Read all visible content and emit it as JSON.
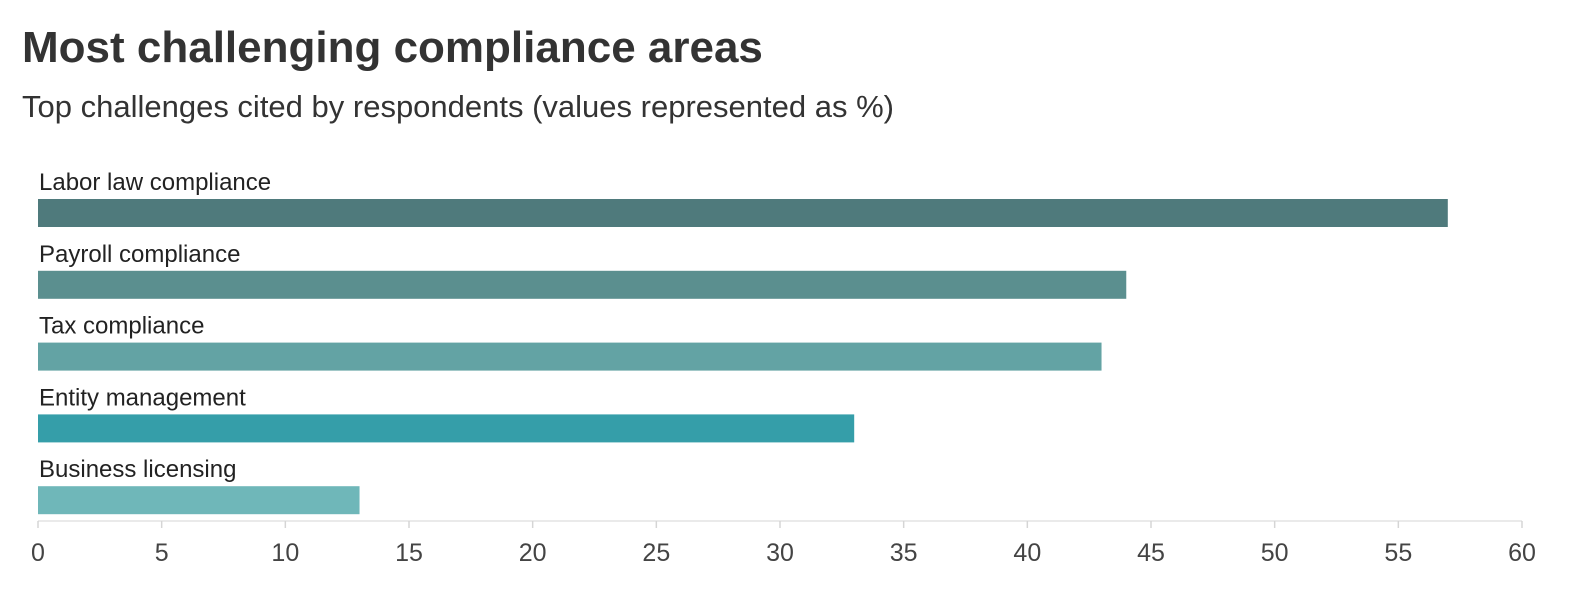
{
  "chart_data": {
    "type": "bar",
    "orientation": "horizontal",
    "title": "Most challenging compliance areas",
    "subtitle": "Top challenges cited by respondents (values represented as %)",
    "categories": [
      "Labor law compliance",
      "Payroll compliance",
      "Tax compliance",
      "Entity management",
      "Business licensing"
    ],
    "values": [
      57,
      44,
      43,
      33,
      13
    ],
    "bar_colors": [
      "#4f7a7c",
      "#5b8f8f",
      "#63a3a4",
      "#359ea9",
      "#6fb7b9"
    ],
    "xlim": [
      0,
      60
    ],
    "x_ticks": [
      0,
      5,
      10,
      15,
      20,
      25,
      30,
      35,
      40,
      45,
      50,
      55,
      60
    ],
    "grid": false,
    "legend": "none"
  }
}
